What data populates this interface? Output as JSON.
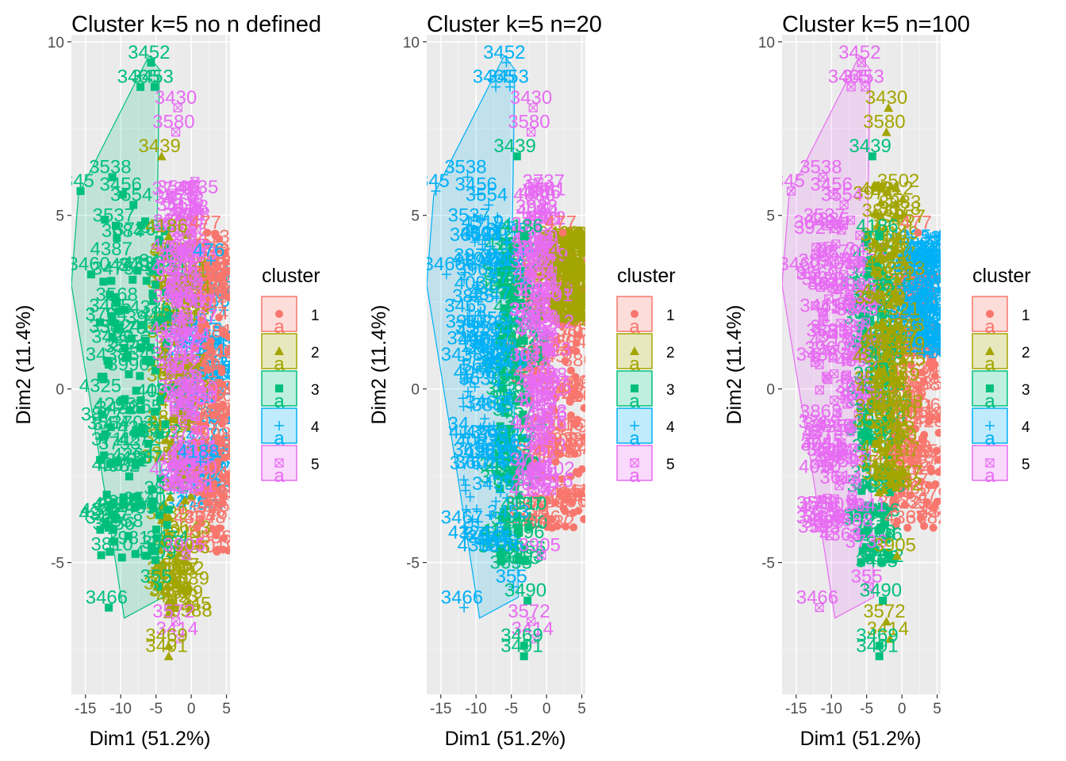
{
  "colors": {
    "panel_bg": "#EBEBEB",
    "grid_major": "#FFFFFF",
    "grid_minor": "#F4F4F4",
    "cluster": [
      "#F8766D",
      "#A3A500",
      "#00BF7D",
      "#00B0F6",
      "#E76BF3"
    ]
  },
  "chart_data": [
    {
      "type": "scatter",
      "title": "Cluster k=5 no n defined",
      "xlabel": "Dim1 (51.2%)",
      "ylabel": "Dim2 (11.4%)",
      "xlim": [
        -17,
        5.5
      ],
      "ylim": [
        -8.8,
        10.2
      ],
      "xticks": [
        "-15",
        "-10",
        "-5",
        "0",
        "5"
      ],
      "yticks": [
        "-5",
        "0",
        "5",
        "10"
      ],
      "grid": true,
      "legend": {
        "title": "cluster",
        "position": "right",
        "entries": [
          "1",
          "2",
          "3",
          "4",
          "5"
        ],
        "shapes": [
          "circle",
          "triangle",
          "square",
          "plus",
          "boxed-x"
        ]
      },
      "hull_cluster": 3,
      "bands": [
        {
          "cluster": 4,
          "xmin": -1.5,
          "xmax": 5.5,
          "ymin": -3.5,
          "ymax": 3.5
        },
        {
          "cluster": 1,
          "xmin": 0.5,
          "xmax": 5.5,
          "ymin": -4.8,
          "ymax": 4.5
        },
        {
          "cluster": 2,
          "xmin": -4.5,
          "xmax": 0,
          "ymin": -6.5,
          "ymax": 5
        },
        {
          "cluster": 3,
          "xmin": -13,
          "xmax": -3,
          "ymin": -5,
          "ymax": 5
        },
        {
          "cluster": 5,
          "xmin": -3,
          "xmax": 1,
          "ymin": -3,
          "ymax": 6
        }
      ],
      "labels": [
        {
          "text": "3452",
          "x": -6,
          "y": 9.7,
          "cluster": 3
        },
        {
          "text": "3453",
          "x": -5.5,
          "y": 9.0,
          "cluster": 3
        },
        {
          "text": "3465",
          "x": -7.5,
          "y": 9.0,
          "cluster": 3
        },
        {
          "text": "3430",
          "x": -2.2,
          "y": 8.4,
          "cluster": 5
        },
        {
          "text": "3580",
          "x": -2.5,
          "y": 7.7,
          "cluster": 5
        },
        {
          "text": "3439",
          "x": -4.5,
          "y": 7.0,
          "cluster": 2
        },
        {
          "text": "3538",
          "x": -11.5,
          "y": 6.4,
          "cluster": 3
        },
        {
          "text": "3456",
          "x": -10,
          "y": 5.9,
          "cluster": 3
        },
        {
          "text": "3554",
          "x": -8.5,
          "y": 5.6,
          "cluster": 3
        },
        {
          "text": "345",
          "x": -16,
          "y": 6.0,
          "cluster": 3
        },
        {
          "text": "3537",
          "x": -11,
          "y": 5.0,
          "cluster": 3
        },
        {
          "text": "4186",
          "x": -3.5,
          "y": 4.7,
          "cluster": 2
        },
        {
          "text": "477",
          "x": 2,
          "y": 4.8,
          "cluster": 1
        },
        {
          "text": "3460",
          "x": -14.5,
          "y": 3.6,
          "cluster": 3
        },
        {
          "text": "476",
          "x": 2.5,
          "y": 4.0,
          "cluster": 4
        },
        {
          "text": "3465",
          "x": -11.5,
          "y": 2.4,
          "cluster": 3
        },
        {
          "text": "35",
          "x": -11.5,
          "y": 1.8,
          "cluster": 3
        },
        {
          "text": "3438",
          "x": -12,
          "y": 1.0,
          "cluster": 3
        },
        {
          "text": "34",
          "x": -12.5,
          "y": -1.0,
          "cluster": 3
        },
        {
          "text": "4188",
          "x": 1,
          "y": -1.8,
          "cluster": 4
        },
        {
          "text": "4367",
          "x": 0.5,
          "y": -3.7,
          "cluster": 1
        },
        {
          "text": "3467",
          "x": -12,
          "y": -3.7,
          "cluster": 3
        },
        {
          "text": "3905",
          "x": -1,
          "y": -4.5,
          "cluster": 5
        },
        {
          "text": "355",
          "x": -5,
          "y": -5.4,
          "cluster": 3
        },
        {
          "text": "3490",
          "x": -3,
          "y": -5.8,
          "cluster": 2
        },
        {
          "text": "3466",
          "x": -12,
          "y": -6.0,
          "cluster": 3
        },
        {
          "text": "3572",
          "x": -2.5,
          "y": -6.4,
          "cluster": 5
        },
        {
          "text": "3414",
          "x": -2,
          "y": -6.9,
          "cluster": 5
        },
        {
          "text": "3469",
          "x": -3.5,
          "y": -7.1,
          "cluster": 2
        },
        {
          "text": "3491",
          "x": -3.5,
          "y": -7.4,
          "cluster": 2
        }
      ],
      "labels_dense": [
        {
          "text": "4",
          "cluster": 2,
          "x": -4,
          "y": 1
        },
        {
          "text": "3",
          "cluster": 3,
          "x": -7,
          "y": -2
        },
        {
          "text": "4",
          "cluster": 1,
          "x": 2,
          "y": -3
        },
        {
          "text": "4",
          "cluster": 5,
          "x": -1,
          "y": 4
        }
      ]
    },
    {
      "type": "scatter",
      "title": "Cluster k=5 n=20",
      "xlabel": "Dim1 (51.2%)",
      "ylabel": "Dim2 (11.4%)",
      "xlim": [
        -17,
        5.5
      ],
      "ylim": [
        -8.8,
        10.2
      ],
      "xticks": [
        "-15",
        "-10",
        "-5",
        "0",
        "5"
      ],
      "yticks": [
        "-5",
        "0",
        "5",
        "10"
      ],
      "grid": true,
      "legend": {
        "title": "cluster",
        "position": "right",
        "entries": [
          "1",
          "2",
          "3",
          "4",
          "5"
        ],
        "shapes": [
          "circle",
          "triangle",
          "square",
          "plus",
          "boxed-x"
        ]
      },
      "hull_cluster": 4,
      "bands": [
        {
          "cluster": 1,
          "xmin": -3,
          "xmax": 5.5,
          "ymin": -4,
          "ymax": 3.8
        },
        {
          "cluster": 3,
          "xmin": -7,
          "xmax": -2.5,
          "ymin": -5,
          "ymax": 4.5
        },
        {
          "cluster": 4,
          "xmin": -12,
          "xmax": -5,
          "ymin": -4.5,
          "ymax": 5
        },
        {
          "cluster": 2,
          "xmin": 1,
          "xmax": 5.5,
          "ymin": 2,
          "ymax": 4.5
        },
        {
          "cluster": 5,
          "xmin": -2.5,
          "xmax": 1,
          "ymin": -3,
          "ymax": 6
        }
      ],
      "labels": [
        {
          "text": "3452",
          "x": -6,
          "y": 9.7,
          "cluster": 4
        },
        {
          "text": "3453",
          "x": -5.5,
          "y": 9.0,
          "cluster": 4
        },
        {
          "text": "3465",
          "x": -7.5,
          "y": 9.0,
          "cluster": 4
        },
        {
          "text": "3430",
          "x": -2.2,
          "y": 8.4,
          "cluster": 5
        },
        {
          "text": "3580",
          "x": -2.5,
          "y": 7.7,
          "cluster": 5
        },
        {
          "text": "3439",
          "x": -4.5,
          "y": 7.0,
          "cluster": 3
        },
        {
          "text": "3538",
          "x": -11.5,
          "y": 6.4,
          "cluster": 4
        },
        {
          "text": "3456",
          "x": -10,
          "y": 5.9,
          "cluster": 4
        },
        {
          "text": "3554",
          "x": -8.5,
          "y": 5.6,
          "cluster": 4
        },
        {
          "text": "345",
          "x": -16,
          "y": 6.0,
          "cluster": 4
        },
        {
          "text": "3537",
          "x": -11,
          "y": 5.0,
          "cluster": 4
        },
        {
          "text": "4186",
          "x": -3.5,
          "y": 4.7,
          "cluster": 3
        },
        {
          "text": "477",
          "x": 2,
          "y": 4.8,
          "cluster": 1
        },
        {
          "text": "3460",
          "x": -14.5,
          "y": 3.6,
          "cluster": 4
        },
        {
          "text": "476",
          "x": 2.5,
          "y": 4.0,
          "cluster": 2
        },
        {
          "text": "3465",
          "x": -11.5,
          "y": 2.4,
          "cluster": 4
        },
        {
          "text": "35",
          "x": -11.5,
          "y": 1.8,
          "cluster": 4
        },
        {
          "text": "3438",
          "x": -12,
          "y": 1.0,
          "cluster": 4
        },
        {
          "text": "34",
          "x": -12.5,
          "y": -1.0,
          "cluster": 4
        },
        {
          "text": "4188",
          "x": 1,
          "y": -1.8,
          "cluster": 1
        },
        {
          "text": "4367",
          "x": 0.5,
          "y": -3.7,
          "cluster": 1
        },
        {
          "text": "3467",
          "x": -12,
          "y": -3.7,
          "cluster": 4
        },
        {
          "text": "3905",
          "x": -1,
          "y": -4.5,
          "cluster": 5
        },
        {
          "text": "355",
          "x": -5,
          "y": -5.4,
          "cluster": 4
        },
        {
          "text": "3490",
          "x": -3,
          "y": -5.8,
          "cluster": 3
        },
        {
          "text": "3466",
          "x": -12,
          "y": -6.0,
          "cluster": 4
        },
        {
          "text": "3572",
          "x": -2.5,
          "y": -6.4,
          "cluster": 5
        },
        {
          "text": "3414",
          "x": -2,
          "y": -6.9,
          "cluster": 5
        },
        {
          "text": "3469",
          "x": -3.5,
          "y": -7.1,
          "cluster": 3
        },
        {
          "text": "3491",
          "x": -3.5,
          "y": -7.4,
          "cluster": 3
        }
      ],
      "labels_dense": [
        {
          "text": "4",
          "cluster": 1,
          "x": 2,
          "y": 0
        },
        {
          "text": "4",
          "cluster": 3,
          "x": -5,
          "y": 1
        },
        {
          "text": "4",
          "cluster": 2,
          "x": 3,
          "y": 3
        },
        {
          "text": "4",
          "cluster": 5,
          "x": -1,
          "y": 4
        }
      ]
    },
    {
      "type": "scatter",
      "title": "Cluster k=5 n=100",
      "xlabel": "Dim1 (51.2%)",
      "ylabel": "Dim2 (11.4%)",
      "xlim": [
        -17,
        5.5
      ],
      "ylim": [
        -8.8,
        10.2
      ],
      "xticks": [
        "-15",
        "-10",
        "-5",
        "0",
        "5"
      ],
      "yticks": [
        "-5",
        "0",
        "5",
        "10"
      ],
      "grid": true,
      "legend": {
        "title": "cluster",
        "position": "right",
        "entries": [
          "1",
          "2",
          "3",
          "4",
          "5"
        ],
        "shapes": [
          "circle",
          "triangle",
          "square",
          "plus",
          "boxed-x"
        ]
      },
      "hull_cluster": 5,
      "bands": [
        {
          "cluster": 1,
          "xmin": -1.5,
          "xmax": 5.5,
          "ymin": -4,
          "ymax": 3.5
        },
        {
          "cluster": 3,
          "xmin": -6,
          "xmax": -1.5,
          "ymin": -5,
          "ymax": 4.5
        },
        {
          "cluster": 5,
          "xmin": -12.5,
          "xmax": -5,
          "ymin": -4.5,
          "ymax": 5
        },
        {
          "cluster": 4,
          "xmin": 1,
          "xmax": 5.5,
          "ymin": 1,
          "ymax": 4.5
        },
        {
          "cluster": 2,
          "xmin": -4,
          "xmax": 0.5,
          "ymin": -3,
          "ymax": 6
        }
      ],
      "labels": [
        {
          "text": "3452",
          "x": -6,
          "y": 9.7,
          "cluster": 5
        },
        {
          "text": "3453",
          "x": -5.5,
          "y": 9.0,
          "cluster": 5
        },
        {
          "text": "3465",
          "x": -7.5,
          "y": 9.0,
          "cluster": 5
        },
        {
          "text": "3430",
          "x": -2.2,
          "y": 8.4,
          "cluster": 2
        },
        {
          "text": "3580",
          "x": -2.5,
          "y": 7.7,
          "cluster": 2
        },
        {
          "text": "3439",
          "x": -4.5,
          "y": 7.0,
          "cluster": 3
        },
        {
          "text": "3538",
          "x": -11.5,
          "y": 6.4,
          "cluster": 5
        },
        {
          "text": "3456",
          "x": -10,
          "y": 5.9,
          "cluster": 5
        },
        {
          "text": "3554",
          "x": -8.5,
          "y": 5.6,
          "cluster": 5
        },
        {
          "text": "345",
          "x": -16,
          "y": 6.0,
          "cluster": 5
        },
        {
          "text": "3537",
          "x": -11,
          "y": 5.0,
          "cluster": 5
        },
        {
          "text": "4186",
          "x": -3.5,
          "y": 4.7,
          "cluster": 3
        },
        {
          "text": "477",
          "x": 2,
          "y": 4.8,
          "cluster": 1
        },
        {
          "text": "3460",
          "x": -14.5,
          "y": 3.6,
          "cluster": 5
        },
        {
          "text": "476",
          "x": 2.5,
          "y": 4.0,
          "cluster": 4
        },
        {
          "text": "3465",
          "x": -11.5,
          "y": 2.4,
          "cluster": 5
        },
        {
          "text": "35",
          "x": -11.5,
          "y": 1.8,
          "cluster": 5
        },
        {
          "text": "3438",
          "x": -12,
          "y": 1.0,
          "cluster": 5
        },
        {
          "text": "34",
          "x": -12.5,
          "y": -1.0,
          "cluster": 5
        },
        {
          "text": "4188",
          "x": 1,
          "y": -1.8,
          "cluster": 1
        },
        {
          "text": "4367",
          "x": 0.5,
          "y": -3.7,
          "cluster": 1
        },
        {
          "text": "3467",
          "x": -12,
          "y": -3.7,
          "cluster": 5
        },
        {
          "text": "3905",
          "x": -1,
          "y": -4.5,
          "cluster": 2
        },
        {
          "text": "355",
          "x": -5,
          "y": -5.4,
          "cluster": 5
        },
        {
          "text": "3490",
          "x": -3,
          "y": -5.8,
          "cluster": 3
        },
        {
          "text": "3466",
          "x": -12,
          "y": -6.0,
          "cluster": 5
        },
        {
          "text": "3572",
          "x": -2.5,
          "y": -6.4,
          "cluster": 2
        },
        {
          "text": "3414",
          "x": -2,
          "y": -6.9,
          "cluster": 2
        },
        {
          "text": "3469",
          "x": -3.5,
          "y": -7.1,
          "cluster": 3
        },
        {
          "text": "3491",
          "x": -3.5,
          "y": -7.4,
          "cluster": 3
        }
      ],
      "labels_dense": [
        {
          "text": "4",
          "cluster": 1,
          "x": 2,
          "y": 0
        },
        {
          "text": "4",
          "cluster": 3,
          "x": -4,
          "y": 1
        },
        {
          "text": "4",
          "cluster": 4,
          "x": 3,
          "y": 2
        },
        {
          "text": "4",
          "cluster": 2,
          "x": -1,
          "y": 4
        }
      ]
    }
  ]
}
